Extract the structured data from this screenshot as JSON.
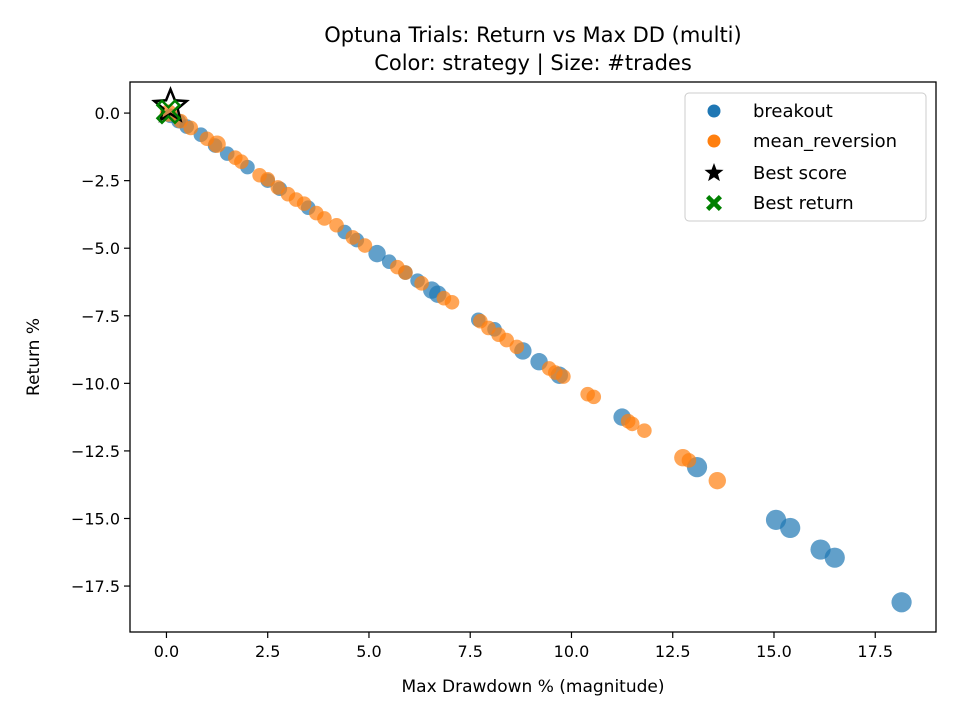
{
  "chart_data": {
    "type": "scatter",
    "title": "Optuna Trials: Return vs Max DD (multi)",
    "subtitle": "Color: strategy | Size: #trades",
    "xlabel": "Max Drawdown % (magnitude)",
    "ylabel": "Return %",
    "xlim": [
      -0.9,
      19.0
    ],
    "ylim": [
      -19.2,
      1.15
    ],
    "xticks": [
      0.0,
      2.5,
      5.0,
      7.5,
      10.0,
      12.5,
      15.0,
      17.5
    ],
    "xtick_labels": [
      "0.0",
      "2.5",
      "5.0",
      "7.5",
      "10.0",
      "12.5",
      "15.0",
      "17.5"
    ],
    "yticks": [
      0.0,
      -2.5,
      -5.0,
      -7.5,
      -10.0,
      -12.5,
      -15.0,
      -17.5
    ],
    "ytick_labels": [
      "0.0",
      "−2.5",
      "−5.0",
      "−7.5",
      "−10.0",
      "−12.5",
      "−15.0",
      "−17.5"
    ],
    "grid": false,
    "legend_position": "top-right",
    "series": [
      {
        "name": "breakout",
        "color": "#1f77b4",
        "points": [
          {
            "x": 0.1,
            "y": -0.1,
            "trades": 2
          },
          {
            "x": 0.3,
            "y": -0.3,
            "trades": 2
          },
          {
            "x": 0.5,
            "y": -0.5,
            "trades": 2
          },
          {
            "x": 0.85,
            "y": -0.8,
            "trades": 2
          },
          {
            "x": 1.2,
            "y": -1.2,
            "trades": 2
          },
          {
            "x": 1.5,
            "y": -1.5,
            "trades": 2
          },
          {
            "x": 2.0,
            "y": -2.0,
            "trades": 2
          },
          {
            "x": 2.5,
            "y": -2.5,
            "trades": 2
          },
          {
            "x": 2.8,
            "y": -2.8,
            "trades": 2
          },
          {
            "x": 3.5,
            "y": -3.5,
            "trades": 2
          },
          {
            "x": 4.4,
            "y": -4.4,
            "trades": 2
          },
          {
            "x": 4.7,
            "y": -4.7,
            "trades": 2
          },
          {
            "x": 5.2,
            "y": -5.2,
            "trades": 3
          },
          {
            "x": 5.5,
            "y": -5.5,
            "trades": 2
          },
          {
            "x": 5.9,
            "y": -5.9,
            "trades": 2
          },
          {
            "x": 6.2,
            "y": -6.2,
            "trades": 2
          },
          {
            "x": 6.55,
            "y": -6.55,
            "trades": 3
          },
          {
            "x": 6.7,
            "y": -6.7,
            "trades": 3
          },
          {
            "x": 7.7,
            "y": -7.65,
            "trades": 2
          },
          {
            "x": 8.1,
            "y": -8.0,
            "trades": 2
          },
          {
            "x": 8.8,
            "y": -8.8,
            "trades": 3
          },
          {
            "x": 9.2,
            "y": -9.2,
            "trades": 3
          },
          {
            "x": 9.7,
            "y": -9.7,
            "trades": 3
          },
          {
            "x": 11.25,
            "y": -11.25,
            "trades": 3
          },
          {
            "x": 13.1,
            "y": -13.1,
            "trades": 4
          },
          {
            "x": 15.05,
            "y": -15.05,
            "trades": 4
          },
          {
            "x": 15.4,
            "y": -15.35,
            "trades": 4
          },
          {
            "x": 16.15,
            "y": -16.15,
            "trades": 4
          },
          {
            "x": 16.5,
            "y": -16.45,
            "trades": 4
          },
          {
            "x": 18.15,
            "y": -18.1,
            "trades": 4
          }
        ]
      },
      {
        "name": "mean_reversion",
        "color": "#ff7f0e",
        "points": [
          {
            "x": 0.05,
            "y": 0.0,
            "trades": 3
          },
          {
            "x": 0.35,
            "y": -0.3,
            "trades": 2
          },
          {
            "x": 0.6,
            "y": -0.55,
            "trades": 2
          },
          {
            "x": 1.0,
            "y": -0.95,
            "trades": 2
          },
          {
            "x": 1.25,
            "y": -1.15,
            "trades": 3
          },
          {
            "x": 1.7,
            "y": -1.65,
            "trades": 2
          },
          {
            "x": 1.85,
            "y": -1.8,
            "trades": 2
          },
          {
            "x": 2.3,
            "y": -2.3,
            "trades": 2
          },
          {
            "x": 2.5,
            "y": -2.45,
            "trades": 2
          },
          {
            "x": 2.75,
            "y": -2.75,
            "trades": 2
          },
          {
            "x": 3.0,
            "y": -3.0,
            "trades": 2
          },
          {
            "x": 3.2,
            "y": -3.2,
            "trades": 2
          },
          {
            "x": 3.4,
            "y": -3.35,
            "trades": 2
          },
          {
            "x": 3.7,
            "y": -3.7,
            "trades": 2
          },
          {
            "x": 3.9,
            "y": -3.9,
            "trades": 2
          },
          {
            "x": 4.2,
            "y": -4.15,
            "trades": 2
          },
          {
            "x": 4.6,
            "y": -4.6,
            "trades": 2
          },
          {
            "x": 4.9,
            "y": -4.9,
            "trades": 2
          },
          {
            "x": 5.7,
            "y": -5.7,
            "trades": 2
          },
          {
            "x": 5.9,
            "y": -5.9,
            "trades": 2
          },
          {
            "x": 6.3,
            "y": -6.3,
            "trades": 2
          },
          {
            "x": 6.85,
            "y": -6.85,
            "trades": 2
          },
          {
            "x": 7.05,
            "y": -7.0,
            "trades": 2
          },
          {
            "x": 7.75,
            "y": -7.7,
            "trades": 2
          },
          {
            "x": 7.95,
            "y": -7.95,
            "trades": 2
          },
          {
            "x": 8.2,
            "y": -8.2,
            "trades": 2
          },
          {
            "x": 8.4,
            "y": -8.4,
            "trades": 2
          },
          {
            "x": 8.65,
            "y": -8.65,
            "trades": 2
          },
          {
            "x": 9.45,
            "y": -9.45,
            "trades": 2
          },
          {
            "x": 9.6,
            "y": -9.6,
            "trades": 2
          },
          {
            "x": 9.8,
            "y": -9.75,
            "trades": 2
          },
          {
            "x": 10.4,
            "y": -10.4,
            "trades": 2
          },
          {
            "x": 10.55,
            "y": -10.5,
            "trades": 2
          },
          {
            "x": 11.4,
            "y": -11.4,
            "trades": 2
          },
          {
            "x": 11.5,
            "y": -11.5,
            "trades": 2
          },
          {
            "x": 11.8,
            "y": -11.75,
            "trades": 2
          },
          {
            "x": 12.75,
            "y": -12.75,
            "trades": 3
          },
          {
            "x": 12.9,
            "y": -12.85,
            "trades": 2
          },
          {
            "x": 13.6,
            "y": -13.6,
            "trades": 3
          }
        ]
      }
    ],
    "highlights": [
      {
        "name": "Best score",
        "marker": "star",
        "color": "#000000",
        "x": 0.1,
        "y": 0.25
      },
      {
        "name": "Best return",
        "marker": "x",
        "color": "#008000",
        "x": 0.05,
        "y": 0.05
      }
    ]
  }
}
